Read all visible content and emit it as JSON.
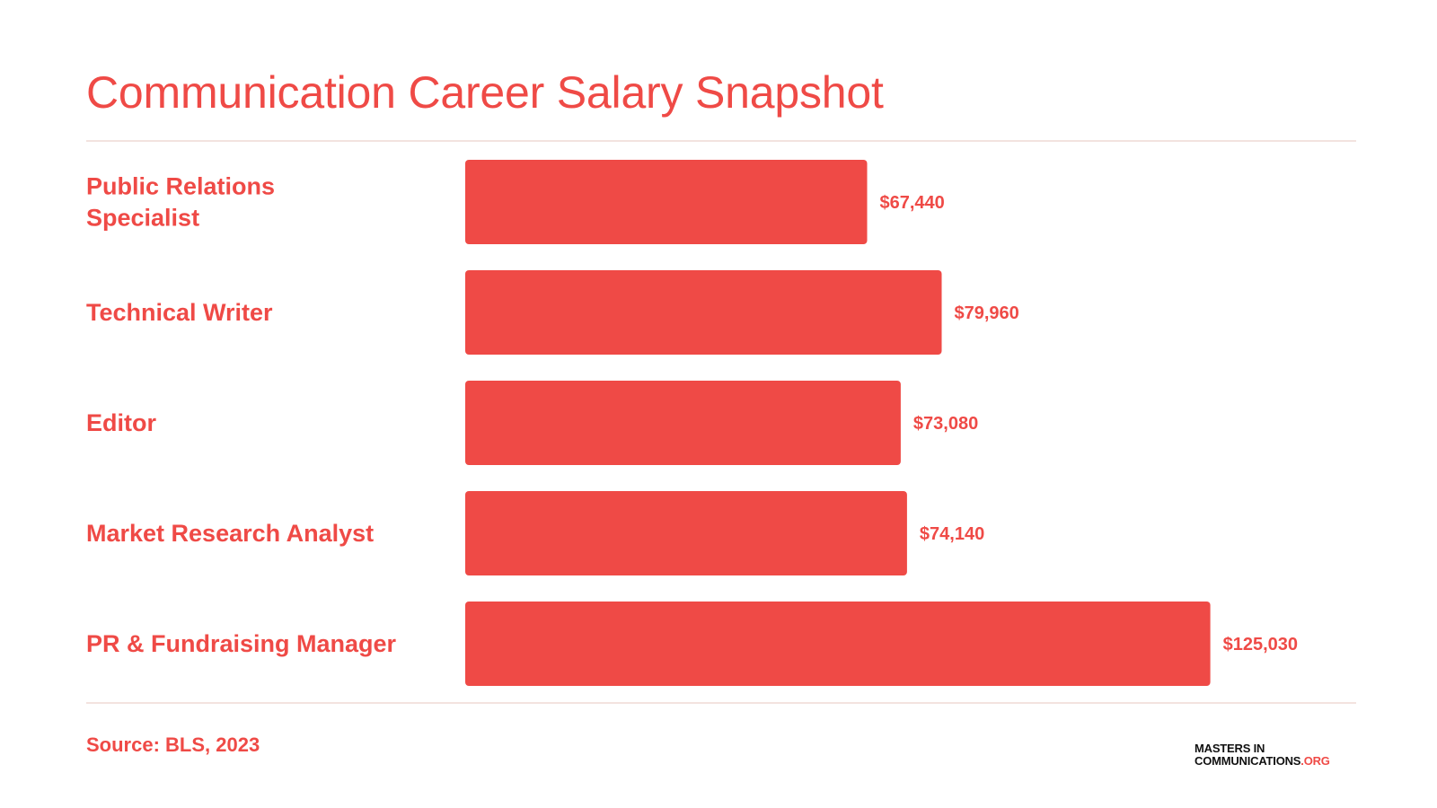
{
  "header": {
    "title": "Communication Career Salary Snapshot"
  },
  "footer": {
    "source": "Source: BLS, 2023",
    "logo_line1": "MASTERS IN",
    "logo_line2_main": "COMMUNICATIONS",
    "logo_line2_suffix": ".ORG"
  },
  "colors": {
    "accent": "#ef4a46",
    "bar": "#ef4a46",
    "logo_text": "#111111"
  },
  "chart_data": {
    "type": "bar",
    "orientation": "horizontal",
    "title": "Communication Career Salary Snapshot",
    "xlabel": "",
    "ylabel": "",
    "xlim": [
      0,
      140000
    ],
    "grid": false,
    "categories": [
      [
        "Public Relations",
        "Specialist"
      ],
      [
        "Technical Writer"
      ],
      [
        "Editor"
      ],
      [
        "Market Research Analyst"
      ],
      [
        "PR & Fundraising Manager"
      ]
    ],
    "values": [
      67440,
      79960,
      73080,
      74140,
      125030
    ],
    "data_labels": [
      "$67,440",
      "$79,960",
      "$73,080",
      "$74,140",
      "$125,030"
    ]
  }
}
